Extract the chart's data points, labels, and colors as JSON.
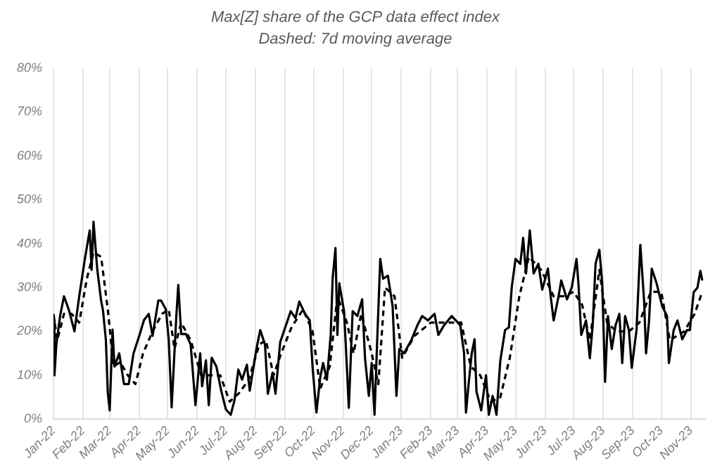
{
  "chart_data": {
    "type": "line",
    "title": "Max[Z] share of the GCP data effect index",
    "subtitle": "Dashed: 7d moving average",
    "series": [
      {
        "color": "#000000",
        "line_style": "solid",
        "x": [
          "2022-01-01",
          "2022-01-02",
          "2022-01-04",
          "2022-01-08",
          "2022-01-12",
          "2022-01-17",
          "2022-01-23",
          "2022-01-28",
          "2022-02-03",
          "2022-02-08",
          "2022-02-10",
          "2022-02-12",
          "2022-02-16",
          "2022-02-20",
          "2022-02-22",
          "2022-02-25",
          "2022-02-27",
          "2022-03-01",
          "2022-03-04",
          "2022-03-06",
          "2022-03-11",
          "2022-03-16",
          "2022-03-21",
          "2022-03-26",
          "2022-04-01",
          "2022-04-06",
          "2022-04-11",
          "2022-04-15",
          "2022-04-21",
          "2022-04-24",
          "2022-04-29",
          "2022-05-02",
          "2022-05-05",
          "2022-05-10",
          "2022-05-12",
          "2022-05-15",
          "2022-05-20",
          "2022-05-25",
          "2022-05-30",
          "2022-06-04",
          "2022-06-06",
          "2022-06-10",
          "2022-06-13",
          "2022-06-16",
          "2022-06-21",
          "2022-06-26",
          "2022-07-01",
          "2022-07-06",
          "2022-07-10",
          "2022-07-14",
          "2022-07-18",
          "2022-07-23",
          "2022-07-26",
          "2022-08-02",
          "2022-08-06",
          "2022-08-11",
          "2022-08-14",
          "2022-08-19",
          "2022-08-22",
          "2022-08-27",
          "2022-09-02",
          "2022-09-07",
          "2022-09-12",
          "2022-09-16",
          "2022-09-22",
          "2022-09-27",
          "2022-09-30",
          "2022-10-04",
          "2022-10-08",
          "2022-10-11",
          "2022-10-15",
          "2022-10-19",
          "2022-10-21",
          "2022-10-24",
          "2022-10-26",
          "2022-10-28",
          "2022-11-02",
          "2022-11-05",
          "2022-11-07",
          "2022-11-11",
          "2022-11-16",
          "2022-11-21",
          "2022-11-24",
          "2022-11-28",
          "2022-12-01",
          "2022-12-04",
          "2022-12-07",
          "2022-12-10",
          "2022-12-13",
          "2022-12-18",
          "2022-12-23",
          "2022-12-27",
          "2022-12-30",
          "2023-01-04",
          "2023-01-12",
          "2023-01-18",
          "2023-01-23",
          "2023-01-29",
          "2023-02-05",
          "2023-02-09",
          "2023-02-15",
          "2023-02-23",
          "2023-03-04",
          "2023-03-08",
          "2023-03-10",
          "2023-03-13",
          "2023-03-16",
          "2023-03-19",
          "2023-03-21",
          "2023-03-26",
          "2023-03-31",
          "2023-04-03",
          "2023-04-07",
          "2023-04-11",
          "2023-04-15",
          "2023-04-20",
          "2023-04-24",
          "2023-04-27",
          "2023-05-01",
          "2023-05-06",
          "2023-05-09",
          "2023-05-12",
          "2023-05-16",
          "2023-05-20",
          "2023-05-25",
          "2023-05-29",
          "2023-06-04",
          "2023-06-07",
          "2023-06-10",
          "2023-06-15",
          "2023-06-18",
          "2023-06-24",
          "2023-06-29",
          "2023-07-04",
          "2023-07-06",
          "2023-07-09",
          "2023-07-14",
          "2023-07-18",
          "2023-07-21",
          "2023-07-24",
          "2023-07-28",
          "2023-07-31",
          "2023-08-03",
          "2023-08-06",
          "2023-08-10",
          "2023-08-14",
          "2023-08-18",
          "2023-08-21",
          "2023-08-24",
          "2023-08-28",
          "2023-08-31",
          "2023-09-05",
          "2023-09-09",
          "2023-09-13",
          "2023-09-15",
          "2023-09-18",
          "2023-09-21",
          "2023-09-26",
          "2023-10-02",
          "2023-10-07",
          "2023-10-09",
          "2023-10-14",
          "2023-10-18",
          "2023-10-23",
          "2023-10-28",
          "2023-10-31",
          "2023-11-04",
          "2023-11-08",
          "2023-11-11",
          "2023-11-13"
        ],
        "values": [
          22.6,
          10,
          17,
          23.6,
          28,
          25,
          20,
          28,
          36.6,
          43,
          34,
          45,
          34,
          27,
          24.7,
          18,
          6,
          2,
          20.4,
          12,
          15,
          8,
          8,
          15,
          19,
          22.6,
          24,
          19,
          27,
          27,
          25,
          18,
          2.7,
          23.7,
          30.6,
          19.4,
          19.4,
          17,
          3.2,
          15,
          7.5,
          13.4,
          3.2,
          14,
          12,
          6.5,
          2.2,
          1,
          4.3,
          11.3,
          9,
          12.4,
          6.5,
          16,
          20.3,
          17,
          5.8,
          10.6,
          5.8,
          17.6,
          21.4,
          24.6,
          23,
          26.8,
          24,
          22.5,
          11.7,
          1.5,
          9.6,
          12.8,
          9,
          19.2,
          32,
          39,
          19.2,
          31,
          24.6,
          11.7,
          2.6,
          24.6,
          23.5,
          27.3,
          13.9,
          5.3,
          12.8,
          1,
          19.2,
          36.5,
          32,
          32.7,
          25.7,
          5.3,
          16,
          15,
          18.2,
          21.4,
          23.5,
          22.5,
          24,
          19.2,
          21.4,
          23.5,
          21.4,
          15,
          1.5,
          8.5,
          15,
          18.2,
          6.3,
          2,
          10,
          1,
          5.3,
          1,
          13.3,
          20.3,
          20.9,
          30,
          36.5,
          35.4,
          41.3,
          33.2,
          43,
          33.2,
          35.4,
          29.5,
          34.3,
          27.8,
          22.5,
          27.8,
          31.6,
          27.3,
          30,
          36.5,
          31,
          19.2,
          22.5,
          13.9,
          21.4,
          35.4,
          38.6,
          31,
          8.5,
          23.5,
          16,
          21.4,
          24,
          12.8,
          23.5,
          20.3,
          11.7,
          20.3,
          39.7,
          26.8,
          15,
          22,
          34.3,
          31,
          25.7,
          23.5,
          12.8,
          20.3,
          22.5,
          18.2,
          20.3,
          20.3,
          28.9,
          30,
          33.8,
          31.6
        ]
      },
      {
        "color": "#000000",
        "line_style": "dashed",
        "x": [
          "2022-01-01",
          "2022-01-05",
          "2022-01-12",
          "2022-01-20",
          "2022-01-28",
          "2022-02-05",
          "2022-02-12",
          "2022-02-20",
          "2022-02-27",
          "2022-03-05",
          "2022-03-12",
          "2022-03-20",
          "2022-03-28",
          "2022-04-05",
          "2022-04-15",
          "2022-04-25",
          "2022-05-02",
          "2022-05-08",
          "2022-05-15",
          "2022-05-25",
          "2022-06-05",
          "2022-06-15",
          "2022-06-25",
          "2022-07-05",
          "2022-07-15",
          "2022-07-25",
          "2022-08-05",
          "2022-08-12",
          "2022-08-20",
          "2022-08-28",
          "2022-09-08",
          "2022-09-20",
          "2022-09-30",
          "2022-10-08",
          "2022-10-18",
          "2022-10-26",
          "2022-11-05",
          "2022-11-12",
          "2022-11-20",
          "2022-12-01",
          "2022-12-08",
          "2022-12-15",
          "2022-12-25",
          "2023-01-02",
          "2023-01-15",
          "2023-02-01",
          "2023-02-15",
          "2023-03-05",
          "2023-03-15",
          "2023-03-25",
          "2023-04-05",
          "2023-04-15",
          "2023-04-25",
          "2023-05-05",
          "2023-05-15",
          "2023-05-28",
          "2023-06-10",
          "2023-06-20",
          "2023-07-01",
          "2023-07-10",
          "2023-07-18",
          "2023-07-28",
          "2023-08-05",
          "2023-08-15",
          "2023-08-28",
          "2023-09-08",
          "2023-09-20",
          "2023-10-01",
          "2023-10-10",
          "2023-10-25",
          "2023-11-05",
          "2023-11-13"
        ],
        "values": [
          24,
          18,
          24,
          24,
          22,
          32,
          38,
          37,
          25,
          12,
          13,
          10,
          8,
          15,
          20,
          24,
          25,
          16,
          22,
          18,
          10,
          10,
          10,
          4,
          6,
          9,
          17,
          18,
          10,
          15,
          21,
          25,
          20,
          7,
          12,
          28,
          22,
          15,
          24,
          15,
          8,
          30,
          28,
          14,
          19,
          22,
          22,
          22,
          12,
          10,
          4,
          5,
          14,
          28,
          37,
          34,
          28,
          28,
          29,
          26,
          18,
          34,
          22,
          20,
          20,
          22,
          29,
          29,
          18,
          20,
          24,
          29
        ]
      }
    ],
    "xlim": [
      "2022-01-01",
      "2023-11-16"
    ],
    "xticks": [
      {
        "value": "2022-01-01",
        "label": "Jan-22"
      },
      {
        "value": "2022-02-01",
        "label": "Feb-22"
      },
      {
        "value": "2022-03-01",
        "label": "Mar-22"
      },
      {
        "value": "2022-04-01",
        "label": "Apr-22"
      },
      {
        "value": "2022-05-01",
        "label": "May-22"
      },
      {
        "value": "2022-06-01",
        "label": "Jun-22"
      },
      {
        "value": "2022-07-01",
        "label": "Jul-22"
      },
      {
        "value": "2022-08-01",
        "label": "Aug-22"
      },
      {
        "value": "2022-09-01",
        "label": "Sep-22"
      },
      {
        "value": "2022-10-01",
        "label": "Oct-22"
      },
      {
        "value": "2022-11-01",
        "label": "Nov-22"
      },
      {
        "value": "2022-12-01",
        "label": "Dec-22"
      },
      {
        "value": "2023-01-01",
        "label": "Jan-23"
      },
      {
        "value": "2023-02-01",
        "label": "Feb-23"
      },
      {
        "value": "2023-03-01",
        "label": "Mar-23"
      },
      {
        "value": "2023-04-01",
        "label": "Apr-23"
      },
      {
        "value": "2023-05-01",
        "label": "May-23"
      },
      {
        "value": "2023-06-01",
        "label": "Jun-23"
      },
      {
        "value": "2023-07-01",
        "label": "Jul-23"
      },
      {
        "value": "2023-08-01",
        "label": "Aug-23"
      },
      {
        "value": "2023-09-01",
        "label": "Sep-23"
      },
      {
        "value": "2023-10-01",
        "label": "Oct-23"
      },
      {
        "value": "2023-11-01",
        "label": "Nov-23"
      }
    ],
    "ylim": [
      0,
      80
    ],
    "yticks": [
      {
        "value": 0,
        "label": "0%"
      },
      {
        "value": 10,
        "label": "10%"
      },
      {
        "value": 20,
        "label": "20%"
      },
      {
        "value": 30,
        "label": "30%"
      },
      {
        "value": 40,
        "label": "40%"
      },
      {
        "value": 50,
        "label": "50%"
      },
      {
        "value": 60,
        "label": "60%"
      },
      {
        "value": 70,
        "label": "70%"
      },
      {
        "value": 80,
        "label": "80%"
      }
    ],
    "grid": "x",
    "legend": false,
    "marker": "none"
  }
}
